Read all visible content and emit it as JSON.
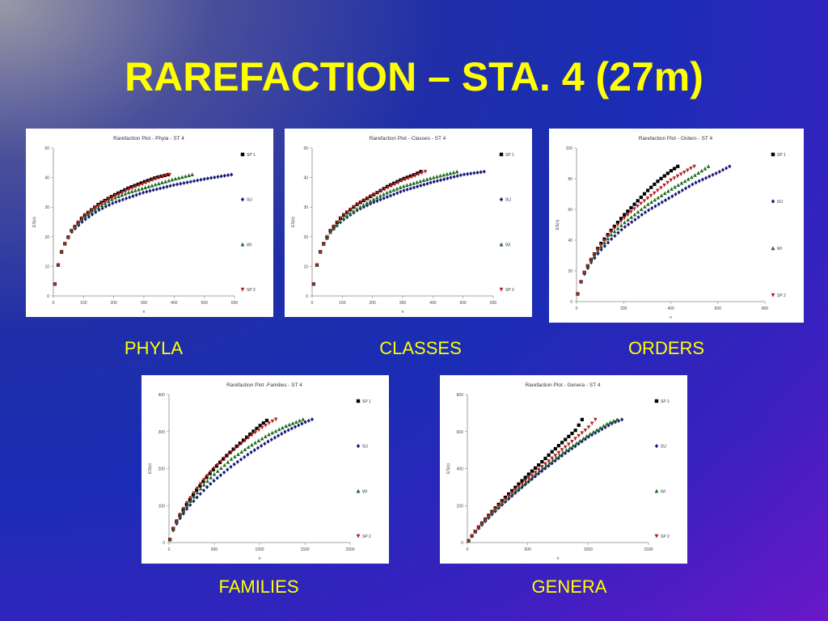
{
  "slide": {
    "title": "RAREFACTION – STA. 4 (27m)",
    "title_color": "#ffff00",
    "caption_color": "#ffff00"
  },
  "legend_series": [
    {
      "name": "SP 1",
      "color": "#000000",
      "marker": "square"
    },
    {
      "name": "SU",
      "color": "#1a1a80",
      "marker": "diamond"
    },
    {
      "name": "WI",
      "color": "#1e6b1e",
      "marker": "triangle-up"
    },
    {
      "name": "SP 2",
      "color": "#b22222",
      "marker": "triangle-down"
    }
  ],
  "chart_data": [
    {
      "id": "phyla",
      "caption": "PHYLA",
      "type": "scatter",
      "title": "Rarefaction Plot - Phyla - ST 4",
      "xlabel": "n",
      "ylabel": "ES(n)",
      "xlim": [
        0,
        600
      ],
      "ylim": [
        0,
        50
      ],
      "xticks": [
        0,
        100,
        200,
        300,
        400,
        500,
        600
      ],
      "yticks": [
        0,
        10,
        20,
        30,
        40,
        50
      ],
      "legend": "right",
      "series": [
        {
          "name": "SP 1",
          "x": [
            5,
            15,
            30,
            60,
            100,
            150,
            200,
            250,
            300,
            340,
            380
          ],
          "y": [
            4,
            10,
            16,
            22,
            27,
            31,
            34,
            36.5,
            38.5,
            40,
            41
          ]
        },
        {
          "name": "SU",
          "x": [
            5,
            15,
            30,
            60,
            100,
            150,
            200,
            300,
            400,
            500,
            590
          ],
          "y": [
            4,
            10,
            16,
            21.5,
            25.5,
            29,
            31.5,
            35,
            37.5,
            39.5,
            41
          ]
        },
        {
          "name": "WI",
          "x": [
            5,
            15,
            30,
            60,
            100,
            150,
            200,
            250,
            300,
            400,
            460
          ],
          "y": [
            4,
            10,
            16,
            22,
            26.5,
            30,
            33,
            35,
            36.5,
            39.5,
            41
          ]
        },
        {
          "name": "SP 2",
          "x": [
            5,
            15,
            30,
            60,
            100,
            150,
            200,
            250,
            300,
            350,
            385
          ],
          "y": [
            4,
            10,
            16,
            22,
            27,
            30.5,
            33.5,
            36,
            38,
            40,
            41
          ]
        }
      ]
    },
    {
      "id": "classes",
      "caption": "CLASSES",
      "type": "scatter",
      "title": "Rarefaction Plot - Classes - ST 4",
      "xlabel": "n",
      "ylabel": "ES(n)",
      "xlim": [
        0,
        600
      ],
      "ylim": [
        0,
        50
      ],
      "xticks": [
        0,
        100,
        200,
        300,
        400,
        500,
        600
      ],
      "yticks": [
        0,
        10,
        20,
        30,
        40,
        50
      ],
      "legend": "right",
      "series": [
        {
          "name": "SP 1",
          "x": [
            5,
            15,
            30,
            60,
            100,
            150,
            200,
            250,
            300,
            340,
            360
          ],
          "y": [
            4,
            10,
            16,
            22,
            27,
            31,
            34,
            37,
            39.5,
            41,
            42
          ]
        },
        {
          "name": "SU",
          "x": [
            5,
            15,
            30,
            60,
            100,
            150,
            200,
            300,
            400,
            500,
            570
          ],
          "y": [
            4,
            10,
            16,
            21.5,
            25.5,
            29,
            31.5,
            35.5,
            38.5,
            41,
            42
          ]
        },
        {
          "name": "WI",
          "x": [
            5,
            15,
            30,
            60,
            100,
            150,
            200,
            250,
            300,
            400,
            480
          ],
          "y": [
            4,
            10,
            16,
            21.5,
            26,
            29.5,
            32.5,
            35,
            37,
            40,
            42
          ]
        },
        {
          "name": "SP 2",
          "x": [
            5,
            15,
            30,
            60,
            100,
            150,
            200,
            250,
            300,
            350,
            375
          ],
          "y": [
            4,
            10,
            16,
            22,
            27,
            31,
            34,
            36.5,
            39,
            41,
            42
          ]
        }
      ]
    },
    {
      "id": "orders",
      "caption": "ORDERS",
      "type": "scatter",
      "title": "Rarefaction Plot - Orders - ST 4",
      "xlabel": "n",
      "ylabel": "ES(n)",
      "xlim": [
        0,
        800
      ],
      "ylim": [
        0,
        100
      ],
      "xticks": [
        0,
        200,
        400,
        600,
        800
      ],
      "yticks": [
        0,
        20,
        40,
        60,
        80,
        100
      ],
      "legend": "right",
      "series": [
        {
          "name": "SP 1",
          "x": [
            5,
            15,
            30,
            60,
            100,
            150,
            200,
            250,
            300,
            350,
            400,
            430
          ],
          "y": [
            5,
            11,
            18,
            27,
            37,
            47,
            56,
            64,
            72,
            79,
            85,
            88
          ]
        },
        {
          "name": "SU",
          "x": [
            5,
            15,
            30,
            60,
            100,
            150,
            200,
            300,
            400,
            500,
            600,
            650
          ],
          "y": [
            5,
            11,
            17,
            25,
            33,
            41,
            48,
            59,
            68,
            77,
            84,
            88
          ]
        },
        {
          "name": "WI",
          "x": [
            5,
            15,
            30,
            60,
            100,
            150,
            200,
            300,
            400,
            500,
            560
          ],
          "y": [
            5,
            11,
            18,
            26,
            35,
            44,
            51,
            63,
            73,
            82,
            88
          ]
        },
        {
          "name": "SP 2",
          "x": [
            5,
            15,
            30,
            60,
            100,
            150,
            200,
            250,
            300,
            400,
            500
          ],
          "y": [
            5,
            11,
            18,
            27,
            36,
            46,
            54,
            61,
            67,
            79,
            88
          ]
        }
      ]
    },
    {
      "id": "families",
      "caption": "FAMILIES",
      "type": "scatter",
      "title": "Rarefaction Plot -Families - ST 4",
      "xlabel": "n",
      "ylabel": "ES(n)",
      "xlim": [
        0,
        2000
      ],
      "ylim": [
        0,
        400
      ],
      "xticks": [
        0,
        500,
        1000,
        1500,
        2000
      ],
      "yticks": [
        0,
        100,
        200,
        300,
        400
      ],
      "legend": "right",
      "series": [
        {
          "name": "SP 1",
          "x": [
            10,
            50,
            100,
            200,
            300,
            400,
            500,
            600,
            700,
            800,
            900,
            1000,
            1080
          ],
          "y": [
            8,
            40,
            65,
            105,
            140,
            172,
            200,
            226,
            250,
            272,
            294,
            315,
            330
          ]
        },
        {
          "name": "SU",
          "x": [
            10,
            50,
            100,
            200,
            300,
            400,
            500,
            700,
            900,
            1100,
            1300,
            1500,
            1580
          ],
          "y": [
            8,
            35,
            58,
            92,
            120,
            145,
            168,
            208,
            243,
            274,
            302,
            325,
            333
          ]
        },
        {
          "name": "WI",
          "x": [
            10,
            50,
            100,
            200,
            300,
            400,
            500,
            700,
            900,
            1100,
            1300,
            1480
          ],
          "y": [
            8,
            38,
            62,
            100,
            132,
            160,
            185,
            228,
            262,
            292,
            316,
            333
          ]
        },
        {
          "name": "SP 2",
          "x": [
            10,
            50,
            100,
            200,
            300,
            400,
            500,
            600,
            700,
            800,
            900,
            1000,
            1100,
            1180
          ],
          "y": [
            8,
            40,
            66,
            108,
            143,
            174,
            201,
            225,
            247,
            268,
            288,
            306,
            322,
            333
          ]
        }
      ]
    },
    {
      "id": "genera",
      "caption": "GENERA",
      "type": "scatter",
      "title": "Rarefaction Plot - Genera - ST 4",
      "xlabel": "n",
      "ylabel": "ES(n)",
      "xlim": [
        0,
        1500
      ],
      "ylim": [
        0,
        800
      ],
      "xticks": [
        0,
        500,
        1000,
        1500
      ],
      "yticks": [
        0,
        200,
        400,
        600,
        800
      ],
      "legend": "right",
      "series": [
        {
          "name": "SP 1",
          "x": [
            10,
            50,
            100,
            200,
            300,
            400,
            500,
            600,
            700,
            800,
            900,
            950
          ],
          "y": [
            10,
            48,
            90,
            165,
            235,
            300,
            365,
            425,
            490,
            550,
            610,
            665
          ]
        },
        {
          "name": "SU",
          "x": [
            10,
            50,
            100,
            200,
            300,
            400,
            500,
            600,
            800,
            1000,
            1200,
            1280
          ],
          "y": [
            10,
            45,
            82,
            150,
            212,
            270,
            325,
            378,
            478,
            570,
            645,
            665
          ]
        },
        {
          "name": "WI",
          "x": [
            10,
            50,
            100,
            200,
            300,
            400,
            500,
            600,
            800,
            1000,
            1150,
            1240
          ],
          "y": [
            10,
            46,
            86,
            155,
            220,
            280,
            335,
            390,
            490,
            580,
            640,
            665
          ]
        },
        {
          "name": "SP 2",
          "x": [
            10,
            50,
            100,
            200,
            300,
            400,
            500,
            600,
            700,
            800,
            900,
            1000,
            1060
          ],
          "y": [
            10,
            48,
            88,
            160,
            225,
            288,
            345,
            400,
            455,
            510,
            565,
            620,
            665
          ]
        }
      ]
    }
  ]
}
